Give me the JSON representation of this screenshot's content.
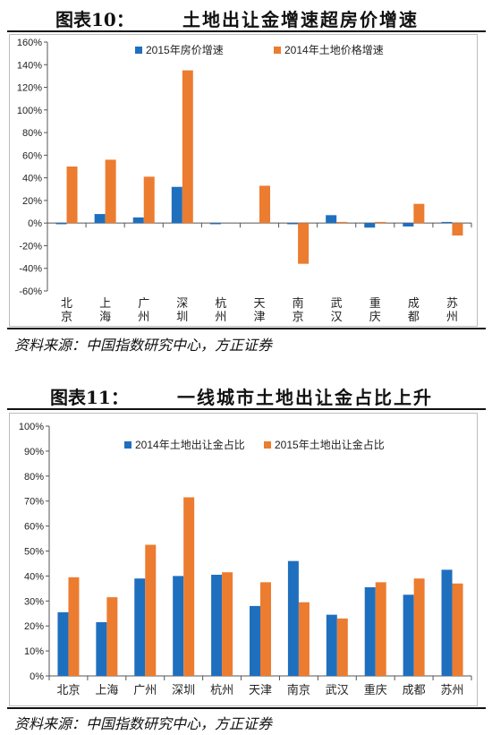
{
  "figure1": {
    "label": "图表10：",
    "title": "土地出让金增速超房价增速",
    "source": "资料来源：中国指数研究中心，方正证券"
  },
  "figure2": {
    "label": "图表11：",
    "title": "一线城市土地出让金占比上升",
    "source": "资料来源：中国指数研究中心，方正证券"
  },
  "chart_data": [
    {
      "type": "bar",
      "categories": [
        "北京",
        "上海",
        "广州",
        "深圳",
        "杭州",
        "天津",
        "南京",
        "武汉",
        "重庆",
        "成都",
        "苏州"
      ],
      "series": [
        {
          "name": "2015年房价增速",
          "color": "#1f6fbf",
          "values": [
            -1,
            8,
            5,
            32,
            -1,
            0,
            -1,
            7,
            -4,
            -3,
            1
          ]
        },
        {
          "name": "2014年土地价格增速",
          "color": "#ec7c30",
          "values": [
            50,
            56,
            41,
            135,
            0,
            33,
            -36,
            1,
            1,
            17,
            -11
          ]
        }
      ],
      "ylim": [
        -60,
        160
      ],
      "yticks": [
        "-60%",
        "-40%",
        "-20%",
        "0%",
        "20%",
        "40%",
        "60%",
        "80%",
        "100%",
        "120%",
        "140%",
        "160%"
      ],
      "legend": "top-center",
      "grid": false
    },
    {
      "type": "bar",
      "categories": [
        "北京",
        "上海",
        "广州",
        "深圳",
        "杭州",
        "天津",
        "南京",
        "武汉",
        "重庆",
        "成都",
        "苏州"
      ],
      "series": [
        {
          "name": "2014年土地出让金占比",
          "color": "#1f6fbf",
          "values": [
            25.5,
            21.5,
            39,
            40,
            40.5,
            28,
            46,
            24.5,
            35.5,
            32.5,
            42.5
          ]
        },
        {
          "name": "2015年土地出让金占比",
          "color": "#ec7c30",
          "values": [
            39.5,
            31.5,
            52.5,
            71.5,
            41.5,
            37.5,
            29.5,
            23,
            37.5,
            39,
            37
          ]
        }
      ],
      "ylim": [
        0,
        100
      ],
      "yticks": [
        "0%",
        "10%",
        "20%",
        "30%",
        "40%",
        "50%",
        "60%",
        "70%",
        "80%",
        "90%",
        "100%"
      ],
      "legend": "top-center",
      "grid": false
    }
  ]
}
